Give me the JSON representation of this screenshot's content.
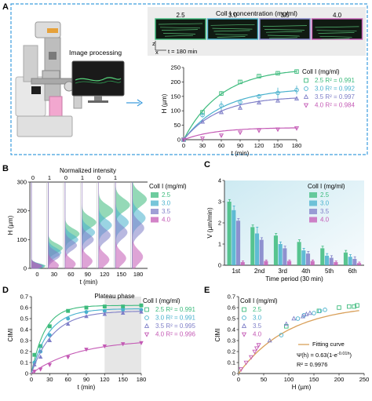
{
  "colors": {
    "c25": "#3dbb7d",
    "c30": "#48b1cd",
    "c35": "#7f7fc8",
    "c40": "#c45ab5",
    "bluebox": "#3d9dde",
    "microbg": "#101a12",
    "microline": "#66e08a",
    "axis": "#333333",
    "shade": "#e6e6e6",
    "fitline": "#d9a05a"
  },
  "panel_labels": {
    "a": "A",
    "b": "B",
    "c": "C",
    "d": "D",
    "e": "E"
  },
  "panelA": {
    "image_processing": "Image processing",
    "micro_title": "Coll I concentration (mg/ml)",
    "micro_concs": [
      "2.5",
      "3.0",
      "3.5",
      "4.0"
    ],
    "micro_time": "t = 180 min",
    "axis_z": "z",
    "axis_x": "x",
    "legend_title": "Coll I (mg/ml)",
    "legend": [
      {
        "label": "2.5 R² = 0.991",
        "key": "c25",
        "marker": "square"
      },
      {
        "label": "3.0 R² = 0.992",
        "key": "c30",
        "marker": "circle"
      },
      {
        "label": "3.5 R² = 0.997",
        "key": "c35",
        "marker": "triangle"
      },
      {
        "label": "4.0 R² = 0.984",
        "key": "c40",
        "marker": "invtriangle"
      }
    ]
  },
  "panelB": {
    "title": "Normalized intensity",
    "legend_title": "Coll I (mg/ml)",
    "legend": [
      "2.5",
      "3.0",
      "3.5",
      "4.0"
    ]
  },
  "panelC": {
    "legend_title": "Coll I (mg/ml)",
    "legend": [
      "2.5",
      "3.0",
      "3.5",
      "4.0"
    ]
  },
  "panelD": {
    "annotation": "Plateau phase",
    "legend_title": "Coll I (mg/ml)",
    "legend": [
      {
        "label": "2.5 R² = 0.991",
        "key": "c25",
        "marker": "square"
      },
      {
        "label": "3.0 R² = 0.991",
        "key": "c30",
        "marker": "circle"
      },
      {
        "label": "3.5 R² = 0.995",
        "key": "c35",
        "marker": "triangle"
      },
      {
        "label": "4.0 R² = 0.996",
        "key": "c40",
        "marker": "invtriangle"
      }
    ]
  },
  "panelE": {
    "legend_title": "Coll I (mg/ml)",
    "legend": [
      {
        "label": "2.5",
        "key": "c25",
        "marker": "square"
      },
      {
        "label": "3.0",
        "key": "c30",
        "marker": "circle"
      },
      {
        "label": "3.5",
        "key": "c35",
        "marker": "triangle"
      },
      {
        "label": "4.0",
        "key": "c40",
        "marker": "invtriangle"
      }
    ],
    "fit_label": "Fitting curve",
    "equation": "Ψ(h) = 0.63(1-e",
    "equation_sup": "-0.01h",
    "equation_close": ")",
    "r2": "R² = 0.9976"
  },
  "chart_data": [
    {
      "id": "A",
      "type": "scatter",
      "xlabel": "t (min)",
      "ylabel": "H (µm)",
      "xlim": [
        0,
        180
      ],
      "ylim": [
        0,
        250
      ],
      "xticks": [
        0,
        30,
        60,
        90,
        120,
        150,
        180
      ],
      "yticks": [
        0,
        50,
        100,
        150,
        200,
        250
      ],
      "x": [
        0,
        30,
        60,
        90,
        120,
        150,
        180
      ],
      "series": [
        {
          "name": "2.5",
          "key": "c25",
          "marker": "square",
          "values": [
            0,
            95,
            160,
            200,
            220,
            230,
            236
          ],
          "err": [
            0,
            8,
            8,
            6,
            6,
            5,
            5
          ],
          "fit": {
            "a": 248,
            "k": 0.017
          }
        },
        {
          "name": "3.0",
          "key": "c30",
          "marker": "circle",
          "values": [
            0,
            85,
            118,
            130,
            150,
            162,
            172
          ],
          "err": [
            0,
            8,
            15,
            10,
            8,
            18,
            15
          ],
          "fit": {
            "a": 180,
            "k": 0.016
          }
        },
        {
          "name": "3.5",
          "key": "c35",
          "marker": "triangle",
          "values": [
            0,
            62,
            95,
            110,
            128,
            135,
            142
          ],
          "err": [
            0,
            6,
            6,
            6,
            5,
            5,
            5
          ],
          "fit": {
            "a": 150,
            "k": 0.018
          }
        },
        {
          "name": "4.0",
          "key": "c40",
          "marker": "invtriangle",
          "values": [
            0,
            5,
            15,
            25,
            32,
            36,
            40
          ],
          "err": [
            0,
            2,
            3,
            3,
            3,
            3,
            3
          ],
          "fit": {
            "a": 42,
            "k": 0.02
          }
        }
      ]
    },
    {
      "id": "B",
      "type": "area",
      "xlabel": "t (min)",
      "ylabel": "H (µm)",
      "ylim": [
        0,
        300
      ],
      "yticks": [
        0,
        100,
        200,
        300
      ],
      "columns": [
        0,
        30,
        60,
        90,
        120,
        150,
        180
      ],
      "top_ticks": [
        "0",
        "1",
        "0",
        "1",
        "0",
        "1"
      ],
      "series": [
        {
          "name": "2.5",
          "key": "c25",
          "peaks": [
            8,
            70,
            120,
            160,
            200,
            220,
            240
          ]
        },
        {
          "name": "3.0",
          "key": "c30",
          "peaks": [
            8,
            55,
            100,
            125,
            150,
            160,
            175
          ]
        },
        {
          "name": "3.5",
          "key": "c35",
          "peaks": [
            8,
            45,
            80,
            100,
            115,
            125,
            140
          ]
        },
        {
          "name": "4.0",
          "key": "c40",
          "peaks": [
            8,
            10,
            15,
            25,
            30,
            35,
            40
          ]
        }
      ]
    },
    {
      "id": "C",
      "type": "bar",
      "xlabel": "Time period (30 min)",
      "ylabel": "V (µm/min)",
      "ylim": [
        0,
        4
      ],
      "yticks": [
        0,
        1,
        2,
        3,
        4
      ],
      "categories": [
        "1st",
        "2nd",
        "3rd",
        "4th",
        "5th",
        "6th"
      ],
      "series": [
        {
          "name": "2.5",
          "key": "c25",
          "values": [
            3.0,
            1.8,
            1.4,
            1.1,
            0.8,
            0.6
          ],
          "err": [
            0.1,
            0.1,
            0.1,
            0.1,
            0.1,
            0.1
          ]
        },
        {
          "name": "3.0",
          "key": "c30",
          "values": [
            2.6,
            1.5,
            1.0,
            0.7,
            0.45,
            0.4
          ],
          "err": [
            0.2,
            0.3,
            0.1,
            0.1,
            0.1,
            0.1
          ]
        },
        {
          "name": "3.5",
          "key": "c35",
          "values": [
            2.1,
            1.2,
            0.8,
            0.55,
            0.35,
            0.3
          ],
          "err": [
            0.1,
            0.1,
            0.1,
            0.1,
            0.1,
            0.1
          ]
        },
        {
          "name": "4.0",
          "key": "c40",
          "values": [
            0.15,
            0.2,
            0.2,
            0.2,
            0.15,
            0.1
          ],
          "err": [
            0.05,
            0.05,
            0.05,
            0.05,
            0.05,
            0.05
          ]
        }
      ]
    },
    {
      "id": "D",
      "type": "scatter",
      "xlabel": "t (min)",
      "ylabel": "CIMI",
      "xlim": [
        0,
        180
      ],
      "ylim": [
        0,
        0.7
      ],
      "xticks": [
        0,
        30,
        60,
        90,
        120,
        150,
        180
      ],
      "yticks": [
        0,
        0.1,
        0.2,
        0.3,
        0.4,
        0.5,
        0.6,
        0.7
      ],
      "shade_from": 120,
      "shade_to": 180,
      "x": [
        5,
        15,
        30,
        60,
        90,
        120,
        150,
        180
      ],
      "series": [
        {
          "name": "2.5",
          "key": "c25",
          "marker": "square",
          "values": [
            0.17,
            0.25,
            0.43,
            0.57,
            0.6,
            0.61,
            0.61,
            0.62
          ],
          "fit": {
            "a": 0.62,
            "k": 0.045
          }
        },
        {
          "name": "3.0",
          "key": "c30",
          "marker": "circle",
          "values": [
            0.1,
            0.2,
            0.35,
            0.5,
            0.56,
            0.57,
            0.58,
            0.58
          ],
          "fit": {
            "a": 0.59,
            "k": 0.035
          }
        },
        {
          "name": "3.5",
          "key": "c35",
          "marker": "triangle",
          "values": [
            0.08,
            0.15,
            0.3,
            0.45,
            0.52,
            0.54,
            0.55,
            0.56
          ],
          "fit": {
            "a": 0.57,
            "k": 0.028
          }
        },
        {
          "name": "4.0",
          "key": "c40",
          "marker": "invtriangle",
          "values": [
            0.02,
            0.04,
            0.08,
            0.15,
            0.22,
            0.25,
            0.27,
            0.28
          ],
          "fit": {
            "a": 0.31,
            "k": 0.013
          }
        }
      ]
    },
    {
      "id": "E",
      "type": "scatter",
      "xlabel": "H (µm)",
      "ylabel": "CIMI",
      "xlim": [
        0,
        250
      ],
      "ylim": [
        0,
        0.7
      ],
      "xticks": [
        0,
        50,
        100,
        150,
        200,
        250
      ],
      "yticks": [
        0,
        0.1,
        0.2,
        0.3,
        0.4,
        0.5,
        0.6,
        0.7
      ],
      "fit": {
        "a": 0.63,
        "k": 0.01
      },
      "series": [
        {
          "name": "2.5",
          "key": "c25",
          "marker": "square",
          "x": [
            95,
            160,
            200,
            220,
            230,
            236
          ],
          "y": [
            0.43,
            0.57,
            0.6,
            0.61,
            0.61,
            0.62
          ]
        },
        {
          "name": "3.0",
          "key": "c30",
          "marker": "circle",
          "x": [
            85,
            118,
            130,
            150,
            162,
            172
          ],
          "y": [
            0.35,
            0.5,
            0.53,
            0.55,
            0.57,
            0.58
          ]
        },
        {
          "name": "3.5",
          "key": "c35",
          "marker": "triangle",
          "x": [
            62,
            95,
            110,
            128,
            135,
            142
          ],
          "y": [
            0.3,
            0.45,
            0.5,
            0.52,
            0.54,
            0.55
          ]
        },
        {
          "name": "4.0",
          "key": "c40",
          "marker": "invtriangle",
          "x": [
            5,
            15,
            25,
            32,
            36,
            40
          ],
          "y": [
            0.04,
            0.1,
            0.15,
            0.2,
            0.23,
            0.26
          ]
        }
      ]
    }
  ]
}
